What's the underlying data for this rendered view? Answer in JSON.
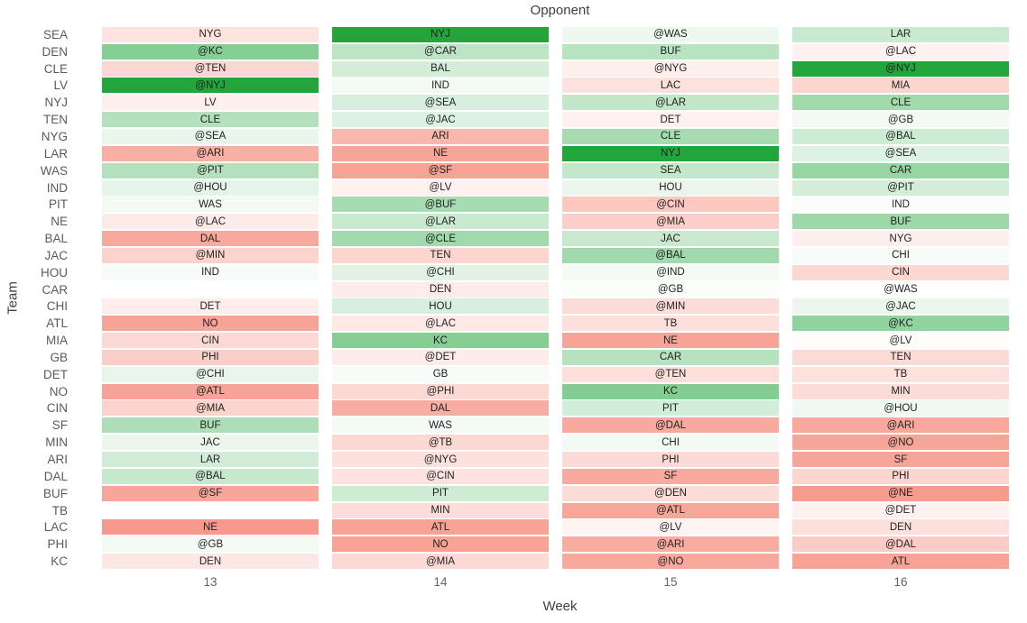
{
  "chart_data": {
    "type": "heatmap",
    "title": "Opponent",
    "xlabel": "Week",
    "ylabel": "Team",
    "columns": [
      "13",
      "14",
      "15",
      "16"
    ],
    "colorscale": {
      "positive": "#22a63c",
      "negative": "#f4725f",
      "zero": "#ffffff"
    },
    "rows": [
      {
        "team": "SEA",
        "cells": [
          {
            "opp": "NYG",
            "val": -0.19
          },
          {
            "opp": "NYJ",
            "val": 1
          },
          {
            "opp": "@WAS",
            "val": 0.08
          },
          {
            "opp": "LAR",
            "val": 0.24
          }
        ]
      },
      {
        "team": "DEN",
        "cells": [
          {
            "opp": "@KC",
            "val": 0.55
          },
          {
            "opp": "@CAR",
            "val": 0.3
          },
          {
            "opp": "BUF",
            "val": 0.32
          },
          {
            "opp": "@LAC",
            "val": -0.1
          }
        ]
      },
      {
        "team": "CLE",
        "cells": [
          {
            "opp": "@TEN",
            "val": -0.29
          },
          {
            "opp": "BAL",
            "val": 0.2
          },
          {
            "opp": "@NYG",
            "val": -0.12
          },
          {
            "opp": "@NYJ",
            "val": 1
          }
        ]
      },
      {
        "team": "LV",
        "cells": [
          {
            "opp": "@NYJ",
            "val": 1
          },
          {
            "opp": "IND",
            "val": 0.05
          },
          {
            "opp": "LAC",
            "val": -0.21
          },
          {
            "opp": "MIA",
            "val": -0.3
          }
        ]
      },
      {
        "team": "NYJ",
        "cells": [
          {
            "opp": "LV",
            "val": -0.12
          },
          {
            "opp": "@SEA",
            "val": 0.18
          },
          {
            "opp": "@LAR",
            "val": 0.28
          },
          {
            "opp": "CLE",
            "val": 0.42
          }
        ]
      },
      {
        "team": "TEN",
        "cells": [
          {
            "opp": "CLE",
            "val": 0.34
          },
          {
            "opp": "@JAC",
            "val": 0.15
          },
          {
            "opp": "DET",
            "val": -0.1
          },
          {
            "opp": "@GB",
            "val": 0.06
          }
        ]
      },
      {
        "team": "NYG",
        "cells": [
          {
            "opp": "@SEA",
            "val": 0.1
          },
          {
            "opp": "ARI",
            "val": -0.51
          },
          {
            "opp": "CLE",
            "val": 0.4
          },
          {
            "opp": "@BAL",
            "val": 0.22
          }
        ]
      },
      {
        "team": "LAR",
        "cells": [
          {
            "opp": "@ARI",
            "val": -0.57
          },
          {
            "opp": "NE",
            "val": -0.64
          },
          {
            "opp": "NYJ",
            "val": 1
          },
          {
            "opp": "@SEA",
            "val": 0.15
          }
        ]
      },
      {
        "team": "WAS",
        "cells": [
          {
            "opp": "@PIT",
            "val": 0.34
          },
          {
            "opp": "@SF",
            "val": -0.66
          },
          {
            "opp": "SEA",
            "val": 0.27
          },
          {
            "opp": "CAR",
            "val": 0.47
          }
        ]
      },
      {
        "team": "IND",
        "cells": [
          {
            "opp": "@HOU",
            "val": 0.12
          },
          {
            "opp": "@LV",
            "val": -0.1
          },
          {
            "opp": "HOU",
            "val": 0.09
          },
          {
            "opp": "@PIT",
            "val": 0.2
          }
        ]
      },
      {
        "team": "PIT",
        "cells": [
          {
            "opp": "WAS",
            "val": 0.06
          },
          {
            "opp": "@BUF",
            "val": 0.4
          },
          {
            "opp": "@CIN",
            "val": -0.4
          },
          {
            "opp": "IND",
            "val": 0.02
          }
        ]
      },
      {
        "team": "NE",
        "cells": [
          {
            "opp": "@LAC",
            "val": -0.14
          },
          {
            "opp": "@LAR",
            "val": 0.24
          },
          {
            "opp": "@MIA",
            "val": -0.35
          },
          {
            "opp": "BUF",
            "val": 0.44
          }
        ]
      },
      {
        "team": "BAL",
        "cells": [
          {
            "opp": "DAL",
            "val": -0.62
          },
          {
            "opp": "@CLE",
            "val": 0.43
          },
          {
            "opp": "JAC",
            "val": 0.25
          },
          {
            "opp": "NYG",
            "val": -0.12
          }
        ]
      },
      {
        "team": "JAC",
        "cells": [
          {
            "opp": "@MIN",
            "val": -0.32
          },
          {
            "opp": "TEN",
            "val": -0.3
          },
          {
            "opp": "@BAL",
            "val": 0.43
          },
          {
            "opp": "CHI",
            "val": 0.03
          }
        ]
      },
      {
        "team": "HOU",
        "cells": [
          {
            "opp": "IND",
            "val": 0.03
          },
          {
            "opp": "@CHI",
            "val": 0.13
          },
          {
            "opp": "@IND",
            "val": 0.05
          },
          {
            "opp": "CIN",
            "val": -0.28
          }
        ]
      },
      {
        "team": "CAR",
        "cells": [
          null,
          {
            "opp": "DEN",
            "val": -0.14
          },
          {
            "opp": "@GB",
            "val": 0.02
          },
          {
            "opp": "@WAS",
            "val": 0.01
          }
        ]
      },
      {
        "team": "CHI",
        "cells": [
          {
            "opp": "DET",
            "val": -0.13
          },
          {
            "opp": "HOU",
            "val": 0.18
          },
          {
            "opp": "@MIN",
            "val": -0.25
          },
          {
            "opp": "@JAC",
            "val": 0.09
          }
        ]
      },
      {
        "team": "ATL",
        "cells": [
          {
            "opp": "NO",
            "val": -0.65
          },
          {
            "opp": "@LAC",
            "val": -0.15
          },
          {
            "opp": "TB",
            "val": -0.22
          },
          {
            "opp": "@KC",
            "val": 0.5
          }
        ]
      },
      {
        "team": "MIA",
        "cells": [
          {
            "opp": "CIN",
            "val": -0.27
          },
          {
            "opp": "KC",
            "val": 0.55
          },
          {
            "opp": "NE",
            "val": -0.65
          },
          {
            "opp": "@LV",
            "val": -0.02
          }
        ]
      },
      {
        "team": "GB",
        "cells": [
          {
            "opp": "PHI",
            "val": -0.34
          },
          {
            "opp": "@DET",
            "val": -0.14
          },
          {
            "opp": "CAR",
            "val": 0.33
          },
          {
            "opp": "TEN",
            "val": -0.26
          }
        ]
      },
      {
        "team": "DET",
        "cells": [
          {
            "opp": "@CHI",
            "val": 0.11
          },
          {
            "opp": "GB",
            "val": 0.04
          },
          {
            "opp": "@TEN",
            "val": -0.23
          },
          {
            "opp": "TB",
            "val": -0.21
          }
        ]
      },
      {
        "team": "NO",
        "cells": [
          {
            "opp": "@ATL",
            "val": -0.65
          },
          {
            "opp": "@PHI",
            "val": -0.28
          },
          {
            "opp": "KC",
            "val": 0.56
          },
          {
            "opp": "MIN",
            "val": -0.25
          }
        ]
      },
      {
        "team": "CIN",
        "cells": [
          {
            "opp": "@MIA",
            "val": -0.32
          },
          {
            "opp": "DAL",
            "val": -0.59
          },
          {
            "opp": "PIT",
            "val": 0.2
          },
          {
            "opp": "@HOU",
            "val": 0.07
          }
        ]
      },
      {
        "team": "SF",
        "cells": [
          {
            "opp": "BUF",
            "val": 0.37
          },
          {
            "opp": "WAS",
            "val": 0.05
          },
          {
            "opp": "@DAL",
            "val": -0.6
          },
          {
            "opp": "@ARI",
            "val": -0.62
          }
        ]
      },
      {
        "team": "MIN",
        "cells": [
          {
            "opp": "JAC",
            "val": 0.09
          },
          {
            "opp": "@TB",
            "val": -0.28
          },
          {
            "opp": "CHI",
            "val": 0.06
          },
          {
            "opp": "@NO",
            "val": -0.64
          }
        ]
      },
      {
        "team": "ARI",
        "cells": [
          {
            "opp": "LAR",
            "val": 0.21
          },
          {
            "opp": "@NYG",
            "val": -0.21
          },
          {
            "opp": "PHI",
            "val": -0.26
          },
          {
            "opp": "SF",
            "val": -0.64
          }
        ]
      },
      {
        "team": "DAL",
        "cells": [
          {
            "opp": "@BAL",
            "val": 0.26
          },
          {
            "opp": "@CIN",
            "val": -0.2
          },
          {
            "opp": "SF",
            "val": -0.6
          },
          {
            "opp": "PHI",
            "val": -0.3
          }
        ]
      },
      {
        "team": "BUF",
        "cells": [
          {
            "opp": "@SF",
            "val": -0.63
          },
          {
            "opp": "PIT",
            "val": 0.22
          },
          {
            "opp": "@DEN",
            "val": -0.25
          },
          {
            "opp": "@NE",
            "val": -0.71
          }
        ]
      },
      {
        "team": "TB",
        "cells": [
          null,
          {
            "opp": "MIN",
            "val": -0.24
          },
          {
            "opp": "@ATL",
            "val": -0.63
          },
          {
            "opp": "@DET",
            "val": -0.1
          }
        ]
      },
      {
        "team": "LAC",
        "cells": [
          {
            "opp": "NE",
            "val": -0.72
          },
          {
            "opp": "ATL",
            "val": -0.66
          },
          {
            "opp": "@LV",
            "val": -0.08
          },
          {
            "opp": "DEN",
            "val": -0.22
          }
        ]
      },
      {
        "team": "PHI",
        "cells": [
          {
            "opp": "@GB",
            "val": 0.05
          },
          {
            "opp": "NO",
            "val": -0.66
          },
          {
            "opp": "@ARI",
            "val": -0.58
          },
          {
            "opp": "@DAL",
            "val": -0.36
          }
        ]
      },
      {
        "team": "KC",
        "cells": [
          {
            "opp": "DEN",
            "val": -0.17
          },
          {
            "opp": "@MIA",
            "val": -0.27
          },
          {
            "opp": "@NO",
            "val": -0.62
          },
          {
            "opp": "ATL",
            "val": -0.65
          }
        ]
      }
    ]
  }
}
